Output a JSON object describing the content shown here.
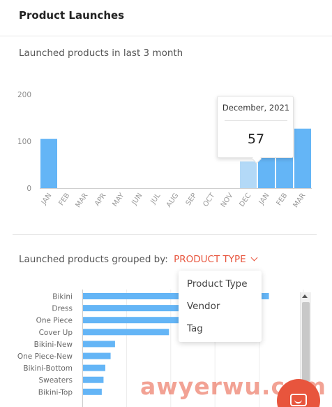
{
  "header": {
    "title": "Product Launches"
  },
  "timeline": {
    "subtitle": "Launched products in last 3 month"
  },
  "tooltip": {
    "title": "December, 2021",
    "value": "57"
  },
  "grouping": {
    "label": "Launched products grouped by:",
    "selected": "PRODUCT TYPE"
  },
  "dropdown": {
    "options": [
      "Product Type",
      "Vendor",
      "Tag"
    ]
  },
  "colors": {
    "bar": "#64b5f6",
    "bar_highlight": "#b3d9f7",
    "accent": "#e8553d"
  },
  "icons": {
    "dropdown_chevron": "chevron-down-icon",
    "chat": "chat-icon",
    "scroll_up": "arrow-up-icon"
  },
  "watermark": "awyerwu.com",
  "chart_data": [
    {
      "type": "bar",
      "categories": [
        "JAN",
        "FEB",
        "MAR",
        "APR",
        "MAY",
        "JUN",
        "JUL",
        "AUG",
        "SEP",
        "OCT",
        "NOV",
        "DEC",
        "JAN",
        "FEB",
        "MAR"
      ],
      "series": [
        {
          "values": [
            105,
            0,
            0,
            0,
            0,
            0,
            0,
            0,
            0,
            0,
            0,
            57,
            115,
            115,
            127
          ]
        }
      ],
      "ylim": [
        0,
        200
      ],
      "yticks": [
        0,
        100,
        200
      ],
      "highlighted_category_index": 11,
      "grid": false
    },
    {
      "type": "bar",
      "orientation": "horizontal",
      "categories": [
        "Bikini",
        "Dress",
        "One Piece",
        "Cover Up",
        "Bikini-New",
        "One Piece-New",
        "Bikini-Bottom",
        "Sweaters",
        "Bikini-Top"
      ],
      "series": [
        {
          "values": [
            1055,
            560,
            550,
            490,
            185,
            160,
            130,
            120,
            110
          ]
        }
      ],
      "grid": true
    }
  ]
}
